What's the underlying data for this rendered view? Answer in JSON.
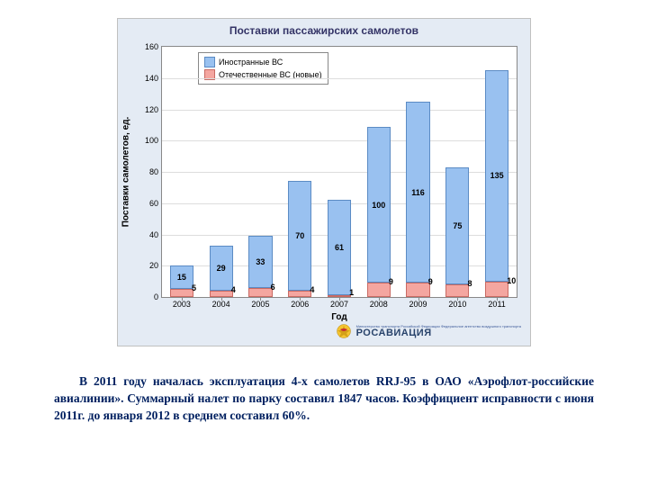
{
  "chart": {
    "title": "Поставки пассажирских самолетов",
    "type": "stacked-bar",
    "background_color": "#e4ebf4",
    "plot_bg": "#ffffff",
    "ylabel": "Поставки самолетов, ед.",
    "xlabel": "Год",
    "ylim": [
      0,
      160
    ],
    "ytick_step": 20,
    "categories": [
      "2003",
      "2004",
      "2005",
      "2006",
      "2007",
      "2008",
      "2009",
      "2010",
      "2011"
    ],
    "series": [
      {
        "name": "Иностранные ВС",
        "color": "#99c1f0",
        "border": "#5b8bc4",
        "values": [
          15,
          29,
          33,
          70,
          61,
          100,
          116,
          75,
          135
        ]
      },
      {
        "name": "Отечественные ВС (новые)",
        "color": "#f4a6a0",
        "border": "#c96a63",
        "values": [
          5,
          4,
          6,
          4,
          1,
          9,
          9,
          8,
          10
        ]
      }
    ],
    "bar_width": 0.6,
    "label_fontsize": 9,
    "grid_color": "#dddddd"
  },
  "logo": {
    "smalltext": "Министерство транспорта Российской Федерации Федеральное агентство воздушного транспорта",
    "text": "РОСАВИАЦИЯ"
  },
  "body_text": "В 2011 году началась эксплуатация 4-х самолетов RRJ-95 в ОАО «Аэрофлот-российские авиалинии». Суммарный налет по парку составил 1847 часов. Коэффициент исправности с июня 2011г. до января 2012 в среднем составил 60%."
}
